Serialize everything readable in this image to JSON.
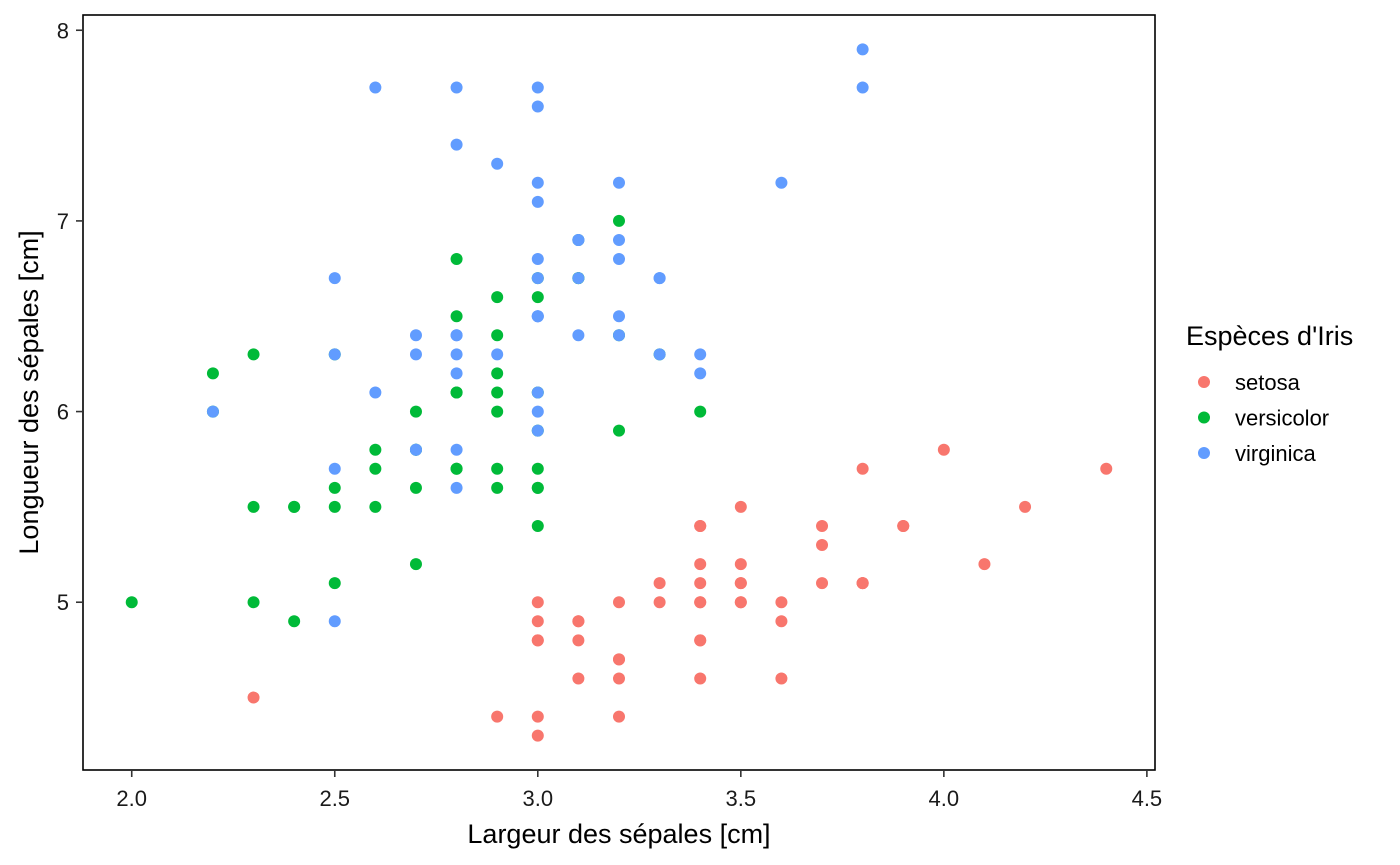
{
  "chart_data": {
    "type": "scatter",
    "xlabel": "Largeur des sépales  [cm]",
    "ylabel": "Longueur des sépales  [cm]",
    "xlim": [
      1.88,
      4.52
    ],
    "ylim": [
      4.12,
      8.08
    ],
    "xticks": [
      "2.0",
      "2.5",
      "3.0",
      "3.5",
      "4.0",
      "4.5"
    ],
    "yticks": [
      "5",
      "6",
      "7",
      "8"
    ],
    "grid": false,
    "legend": {
      "title": "Espèces d'Iris",
      "position": "right"
    },
    "series": [
      {
        "name": "setosa",
        "color": "#F8766D",
        "points": [
          [
            3.5,
            5.1
          ],
          [
            3.0,
            4.9
          ],
          [
            3.2,
            4.7
          ],
          [
            3.1,
            4.6
          ],
          [
            3.6,
            5.0
          ],
          [
            3.9,
            5.4
          ],
          [
            3.4,
            4.6
          ],
          [
            3.4,
            5.0
          ],
          [
            2.9,
            4.4
          ],
          [
            3.1,
            4.9
          ],
          [
            3.7,
            5.4
          ],
          [
            3.4,
            4.8
          ],
          [
            3.0,
            4.8
          ],
          [
            3.0,
            4.3
          ],
          [
            4.0,
            5.8
          ],
          [
            4.4,
            5.7
          ],
          [
            3.9,
            5.4
          ],
          [
            3.5,
            5.1
          ],
          [
            3.8,
            5.7
          ],
          [
            3.8,
            5.1
          ],
          [
            3.4,
            5.4
          ],
          [
            3.7,
            5.1
          ],
          [
            3.6,
            4.6
          ],
          [
            3.3,
            5.1
          ],
          [
            3.4,
            4.8
          ],
          [
            3.0,
            5.0
          ],
          [
            3.4,
            5.0
          ],
          [
            3.5,
            5.2
          ],
          [
            3.4,
            5.2
          ],
          [
            3.2,
            4.7
          ],
          [
            3.1,
            4.8
          ],
          [
            3.4,
            5.4
          ],
          [
            4.1,
            5.2
          ],
          [
            4.2,
            5.5
          ],
          [
            3.1,
            4.9
          ],
          [
            3.2,
            5.0
          ],
          [
            3.5,
            5.5
          ],
          [
            3.6,
            4.9
          ],
          [
            3.0,
            4.4
          ],
          [
            3.4,
            5.1
          ],
          [
            3.5,
            5.0
          ],
          [
            2.3,
            4.5
          ],
          [
            3.2,
            4.4
          ],
          [
            3.5,
            5.0
          ],
          [
            3.8,
            5.1
          ],
          [
            3.0,
            4.8
          ],
          [
            3.8,
            5.1
          ],
          [
            3.2,
            4.6
          ],
          [
            3.7,
            5.3
          ],
          [
            3.3,
            5.0
          ]
        ]
      },
      {
        "name": "versicolor",
        "color": "#00BA38",
        "points": [
          [
            3.2,
            7.0
          ],
          [
            3.2,
            6.4
          ],
          [
            3.1,
            6.9
          ],
          [
            2.3,
            5.5
          ],
          [
            2.8,
            6.5
          ],
          [
            2.8,
            5.7
          ],
          [
            3.3,
            6.3
          ],
          [
            2.4,
            4.9
          ],
          [
            2.9,
            6.6
          ],
          [
            2.7,
            5.2
          ],
          [
            2.0,
            5.0
          ],
          [
            3.0,
            5.9
          ],
          [
            2.2,
            6.0
          ],
          [
            2.9,
            6.1
          ],
          [
            2.9,
            5.6
          ],
          [
            3.1,
            6.7
          ],
          [
            3.0,
            5.6
          ],
          [
            2.7,
            5.8
          ],
          [
            2.2,
            6.2
          ],
          [
            2.5,
            5.6
          ],
          [
            3.2,
            5.9
          ],
          [
            2.8,
            6.1
          ],
          [
            2.5,
            6.3
          ],
          [
            2.8,
            6.1
          ],
          [
            2.9,
            6.4
          ],
          [
            3.0,
            6.6
          ],
          [
            2.8,
            6.8
          ],
          [
            3.0,
            6.7
          ],
          [
            2.9,
            6.0
          ],
          [
            2.6,
            5.7
          ],
          [
            2.4,
            5.5
          ],
          [
            2.4,
            5.5
          ],
          [
            2.7,
            5.8
          ],
          [
            2.7,
            6.0
          ],
          [
            3.0,
            5.4
          ],
          [
            3.4,
            6.0
          ],
          [
            3.1,
            6.7
          ],
          [
            2.3,
            6.3
          ],
          [
            3.0,
            5.6
          ],
          [
            2.5,
            5.5
          ],
          [
            2.6,
            5.5
          ],
          [
            3.0,
            6.1
          ],
          [
            2.6,
            5.8
          ],
          [
            2.3,
            5.0
          ],
          [
            2.7,
            5.6
          ],
          [
            3.0,
            5.7
          ],
          [
            2.9,
            5.7
          ],
          [
            2.9,
            6.2
          ],
          [
            2.5,
            5.1
          ],
          [
            2.8,
            5.7
          ]
        ]
      },
      {
        "name": "virginica",
        "color": "#619CFF",
        "points": [
          [
            3.3,
            6.3
          ],
          [
            2.7,
            5.8
          ],
          [
            3.0,
            7.1
          ],
          [
            2.9,
            6.3
          ],
          [
            3.0,
            6.5
          ],
          [
            3.0,
            7.6
          ],
          [
            2.5,
            4.9
          ],
          [
            2.9,
            7.3
          ],
          [
            2.5,
            6.7
          ],
          [
            3.6,
            7.2
          ],
          [
            3.2,
            6.5
          ],
          [
            2.7,
            6.4
          ],
          [
            3.0,
            6.8
          ],
          [
            2.5,
            5.7
          ],
          [
            2.8,
            5.8
          ],
          [
            3.2,
            6.4
          ],
          [
            3.0,
            6.5
          ],
          [
            3.8,
            7.7
          ],
          [
            2.6,
            7.7
          ],
          [
            2.2,
            6.0
          ],
          [
            3.2,
            6.9
          ],
          [
            2.8,
            5.6
          ],
          [
            2.8,
            7.7
          ],
          [
            2.7,
            6.3
          ],
          [
            3.3,
            6.7
          ],
          [
            3.2,
            7.2
          ],
          [
            2.8,
            6.2
          ],
          [
            3.0,
            6.1
          ],
          [
            2.8,
            6.4
          ],
          [
            3.0,
            7.2
          ],
          [
            2.8,
            7.4
          ],
          [
            3.8,
            7.9
          ],
          [
            2.8,
            6.4
          ],
          [
            2.8,
            6.3
          ],
          [
            2.6,
            6.1
          ],
          [
            3.0,
            7.7
          ],
          [
            3.4,
            6.3
          ],
          [
            3.1,
            6.4
          ],
          [
            3.0,
            6.0
          ],
          [
            3.1,
            6.9
          ],
          [
            3.1,
            6.7
          ],
          [
            3.1,
            6.9
          ],
          [
            2.7,
            5.8
          ],
          [
            3.2,
            6.8
          ],
          [
            3.3,
            6.7
          ],
          [
            3.0,
            6.7
          ],
          [
            2.5,
            6.3
          ],
          [
            3.0,
            6.5
          ],
          [
            3.4,
            6.2
          ],
          [
            3.0,
            5.9
          ]
        ]
      }
    ]
  }
}
